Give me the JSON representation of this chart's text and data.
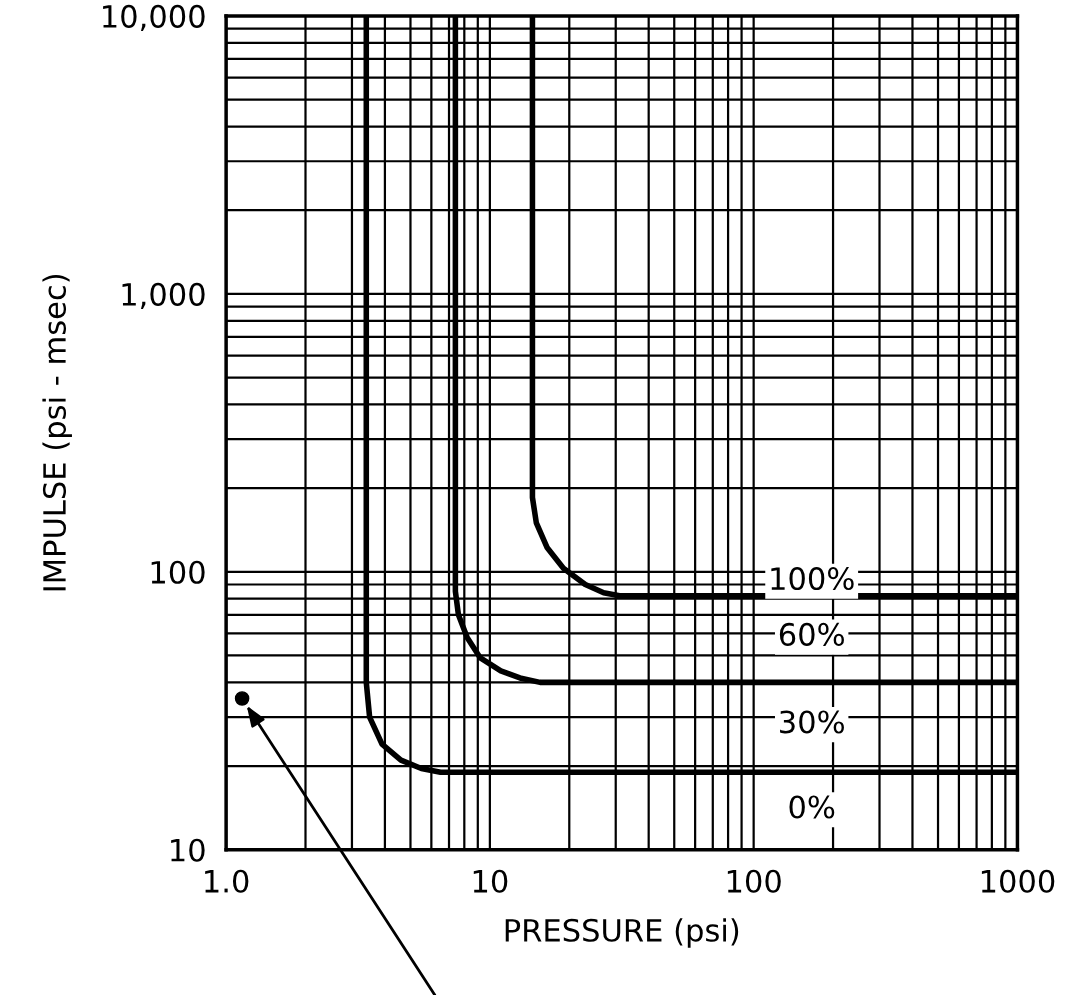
{
  "chart_data": {
    "type": "line",
    "xlabel": "PRESSURE (psi)",
    "ylabel": "IMPULSE (psi - msec)",
    "log": "xy",
    "grid": true,
    "marker": "none",
    "line_style": "solid",
    "xlim": [
      1,
      1000
    ],
    "ylim": [
      10,
      10000
    ],
    "xticks": [
      {
        "value": 1,
        "label": "1.0"
      },
      10,
      100,
      1000
    ],
    "yticks": [
      10,
      100,
      {
        "value": 1000,
        "label": "1,000"
      },
      {
        "value": 10000,
        "label": "10,000"
      }
    ],
    "series": [
      {
        "color": "#000000",
        "x": [
          3.4,
          3.4,
          3.5,
          3.9,
          4.6,
          5.5,
          6.5,
          1000
        ],
        "values": [
          10000,
          40,
          30,
          24,
          21,
          19.6,
          19,
          19
        ]
      },
      {
        "color": "#000000",
        "x": [
          7.4,
          7.4,
          7.6,
          8.2,
          9.2,
          11,
          13,
          15.5,
          1000
        ],
        "values": [
          10000,
          85,
          70,
          58,
          49,
          44,
          41.5,
          40,
          40
        ]
      },
      {
        "color": "#000000",
        "x": [
          14.5,
          14.5,
          15,
          16.5,
          19,
          23,
          27,
          31,
          1000
        ],
        "values": [
          10000,
          185,
          150,
          122,
          103,
          90,
          84,
          82,
          82
        ]
      },
      {
        "type": "scatter",
        "marker": "circle",
        "color": "#000000",
        "x": [
          1.15
        ],
        "values": [
          35
        ]
      }
    ],
    "annotations": [
      "100%",
      "60%",
      "30%",
      "0%"
    ]
  }
}
